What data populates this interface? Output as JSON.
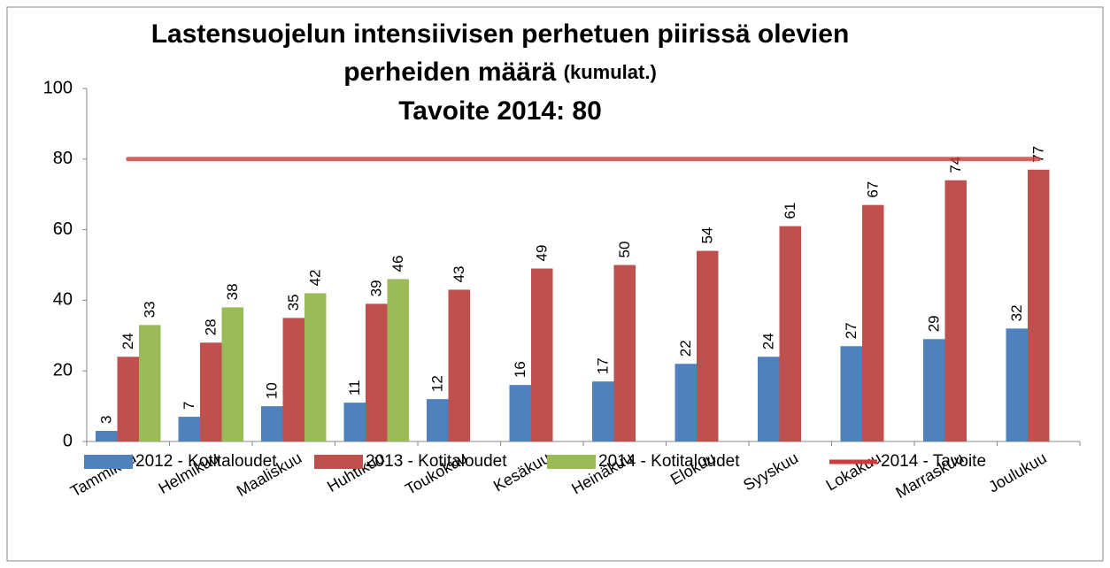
{
  "chart_data": {
    "type": "bar",
    "title": "Lastensuojelun intensiivisen perhetuen piirissä olevien",
    "title_line2": "perheiden määrä",
    "title_note": "(kumulat.)",
    "subtitle": "Tavoite 2014: 80",
    "categories": [
      "Tammikuu",
      "Helmikuu",
      "Maaliskuu",
      "Huhtikuu",
      "Toukokuu",
      "Kesäkuu",
      "Heinäkuu",
      "Elokuu",
      "Syyskuu",
      "Lokakuu",
      "Marraskuu",
      "Joulukuu"
    ],
    "series": [
      {
        "name": "2012 - Kotitaloudet",
        "color": "#4f81bd",
        "values": [
          3,
          7,
          10,
          11,
          12,
          16,
          17,
          22,
          24,
          27,
          29,
          32
        ]
      },
      {
        "name": "2013 - Kotitaloudet",
        "color": "#c0504d",
        "values": [
          24,
          28,
          35,
          39,
          43,
          49,
          50,
          54,
          61,
          67,
          74,
          77
        ]
      },
      {
        "name": "2014 - Kotitaloudet",
        "color": "#9bbb59",
        "values": [
          33,
          38,
          42,
          46,
          null,
          null,
          null,
          null,
          null,
          null,
          null,
          null
        ]
      },
      {
        "name": "2014 - Tavoite",
        "color": "#d0393b",
        "type": "line",
        "values": [
          80,
          80,
          80,
          80,
          80,
          80,
          80,
          80,
          80,
          80,
          80,
          80
        ]
      }
    ],
    "ylim": [
      0,
      100
    ],
    "yticks": [
      0,
      20,
      40,
      60,
      80,
      100
    ],
    "grid": false,
    "legend": "bottom"
  }
}
